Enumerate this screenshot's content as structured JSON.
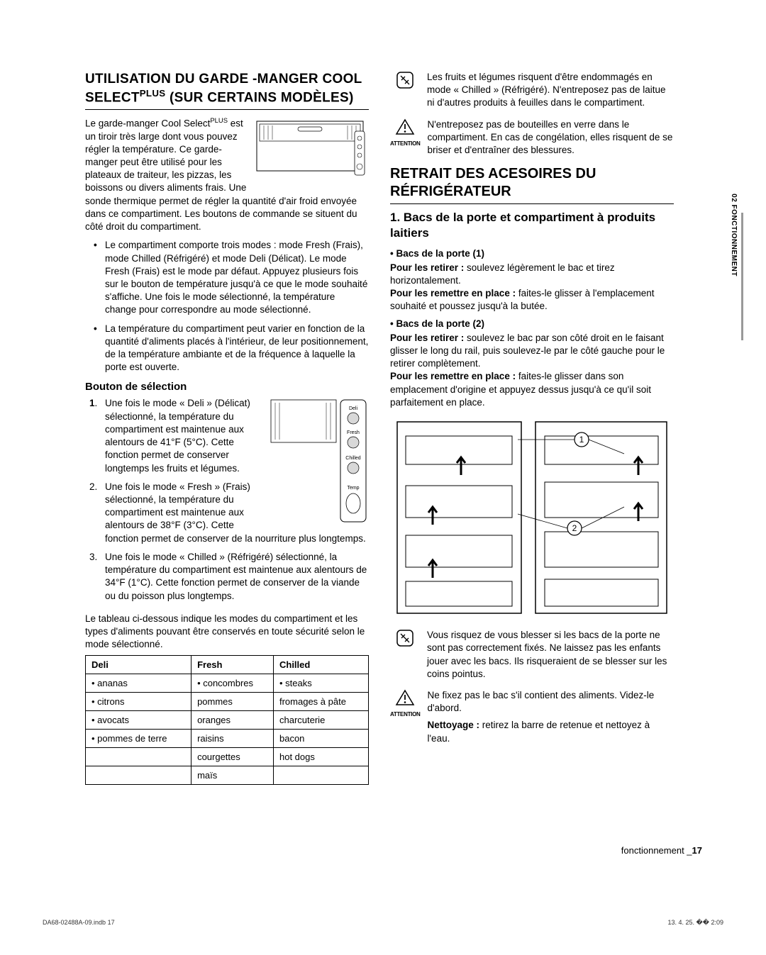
{
  "left": {
    "h1_line1": "UTILISATION DU GARDE -MANGER COOL",
    "h1_line2a": "SELECT",
    "h1_sup": "PLUS",
    "h1_line2b": " (SUR CERTAINS MODÈLES)",
    "intro1a": "Le garde-manger Cool Select",
    "intro_sup": "PLUS",
    "intro1b": " est un tiroir très large dont vous pouvez régler la température. Ce garde-manger peut être utilisé pour les plateaux de traiteur, les pizzas, les boissons ou divers aliments frais. Une sonde thermique permet de régler la quantité d'air froid envoyée dans ce compartiment. Les boutons de commande se situent du côté droit du compartiment.",
    "bullets": [
      "Le compartiment comporte trois modes : mode Fresh (Frais), mode Chilled (Réfrigéré) et mode Deli (Délicat). Le mode Fresh (Frais) est le mode par défaut. Appuyez plusieurs fois sur le bouton de température jusqu'à ce que le mode souhaité s'affiche. Une fois le mode sélectionné, la température change pour correspondre au mode sélectionné.",
      "La température du compartiment peut varier en fonction de la quantité d'aliments placés à l'intérieur, de leur positionnement, de la température ambiante et de la fréquence à laquelle la porte est ouverte."
    ],
    "h4_bouton": "Bouton de sélection",
    "ol": [
      "Une fois le mode « Deli » (Délicat) sélectionné, la température du compartiment est maintenue aux alentours de 41°F (5°C). Cette fonction permet de conserver longtemps les fruits et légumes.",
      "Une fois le mode « Fresh » (Frais) sélectionné, la température du compartiment est maintenue aux alentours de 38°F (3°C). Cette fonction permet de conserver de la nourriture plus longtemps.",
      "Une fois le mode « Chilled » (Réfrigéré) sélectionné, la température du compartiment est maintenue aux alentours de 34°F (1°C). Cette fonction permet de conserver de la viande ou du poisson plus longtemps."
    ],
    "table_intro": "Le tableau ci-dessous indique les modes du compartiment et les types d'aliments pouvant être conservés en toute sécurité selon le mode sélectionné.",
    "table": {
      "headers": [
        "Deli",
        "Fresh",
        "Chilled"
      ],
      "rows": [
        [
          "• ananas",
          "• concombres",
          "• steaks"
        ],
        [
          "• citrons",
          "pommes",
          "fromages à pâte"
        ],
        [
          "• avocats",
          "oranges",
          "charcuterie"
        ],
        [
          "• pommes de terre",
          "raisins",
          "bacon"
        ],
        [
          "",
          "courgettes",
          "hot dogs"
        ],
        [
          "",
          "maïs",
          ""
        ]
      ]
    },
    "ctrl_labels": [
      "Deli",
      "Fresh",
      "Chilled",
      "Temp"
    ]
  },
  "right": {
    "note1": "Les fruits et légumes risquent d'être endommagés en mode « Chilled » (Réfrigéré). N'entreposez pas de laitue ni d'autres produits à feuilles dans le compartiment.",
    "warn1": "N'entreposez pas de bouteilles en verre dans le compartiment. En cas de congélation, elles risquent de se briser et d'entraîner des blessures.",
    "attention": "ATTENTION",
    "h2": "RETRAIT DES ACESOIRES DU RÉFRIGÉRATEUR",
    "h3": "1. Bacs de la porte et compartiment à produits laitiers",
    "sb1": "Bacs de la porte (1)",
    "p1a": "Pour les retirer : ",
    "p1b": "soulevez légèrement le bac et tirez horizontalement.",
    "p2a": "Pour les remettre en place : ",
    "p2b": "faites-le glisser à l'emplacement souhaité et poussez jusqu'à la butée.",
    "sb2": "Bacs de la porte (2)",
    "p3a": "Pour les retirer : ",
    "p3b": "soulevez le bac par son côté droit en le faisant glisser le long du rail, puis soulevez-le par le côté gauche pour le retirer complètement.",
    "p4a": "Pour les remettre en place : ",
    "p4b": "faites-le glisser dans son emplacement d'origine et appuyez dessus jusqu'à ce qu'il soit parfaitement en place.",
    "note2": "Vous risquez de vous blesser si les bacs de la porte ne sont pas correctement fixés. Ne laissez pas les enfants jouer avec les bacs. Ils risqueraient de se blesser sur les coins pointus.",
    "warn2": "Ne fixez pas le bac s'il contient des aliments. Videz-le d'abord.",
    "clean_a": "Nettoyage : ",
    "clean_b": "retirez la barre de retenue et nettoyez à l'eau."
  },
  "sidebar": "02  FONCTIONNEMENT",
  "footer_a": "fonctionnement _",
  "footer_b": "17",
  "print_left": "DA68-02488A-09.indb   17",
  "print_right": "13. 4. 25.   �� 2:09"
}
